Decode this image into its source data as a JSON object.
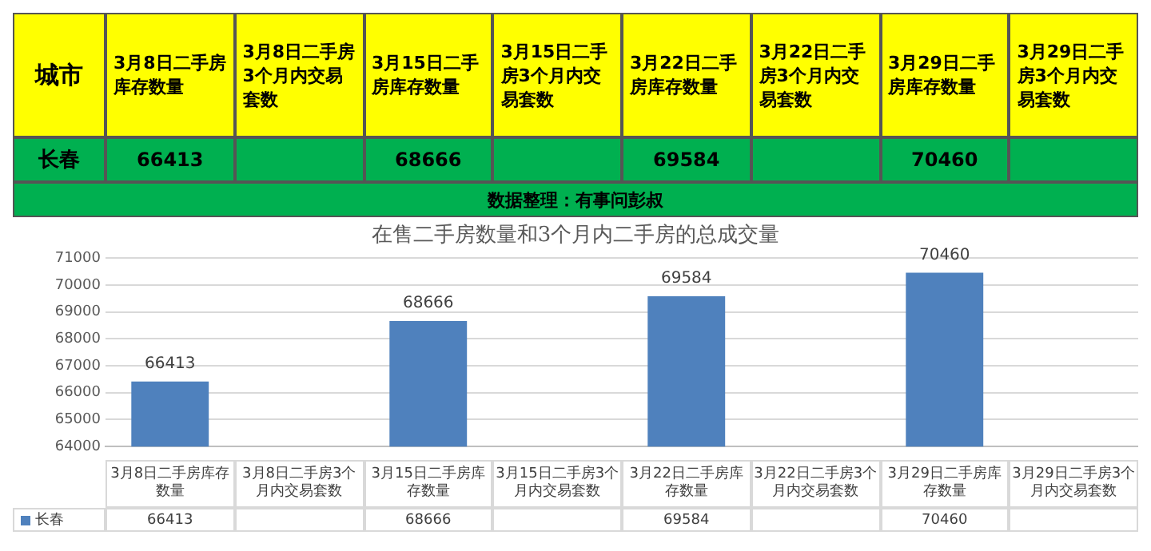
{
  "chart_data": {
    "type": "bar",
    "title": "在售二手房数量和3个月内二手房的总成交量",
    "categories": [
      "3月8日二手房库存数量",
      "3月8日二手房3个月内交易套数",
      "3月15日二手房库存数量",
      "3月15日二手房3个月内交易套数",
      "3月22日二手房库存数量",
      "3月22日二手房3个月内交易套数",
      "3月29日二手房库存数量",
      "3月29日二手房3个月内交易套数"
    ],
    "series": [
      {
        "name": "长春",
        "color": "#4f81bd",
        "values": [
          66413,
          null,
          68666,
          null,
          69584,
          null,
          70460,
          null
        ],
        "value_labels": [
          "66413",
          null,
          "68666",
          null,
          "69584",
          null,
          "70460",
          null
        ]
      }
    ],
    "ylim": [
      64000,
      71000
    ],
    "yticks": [
      64000,
      65000,
      66000,
      67000,
      68000,
      69000,
      70000,
      71000
    ],
    "annotations": [
      "城市",
      "数据整理：有事问彭叔",
      "66413",
      "68666",
      "69584",
      "70460"
    ],
    "grid": "y",
    "data_labels": true,
    "legend": "bottom"
  }
}
